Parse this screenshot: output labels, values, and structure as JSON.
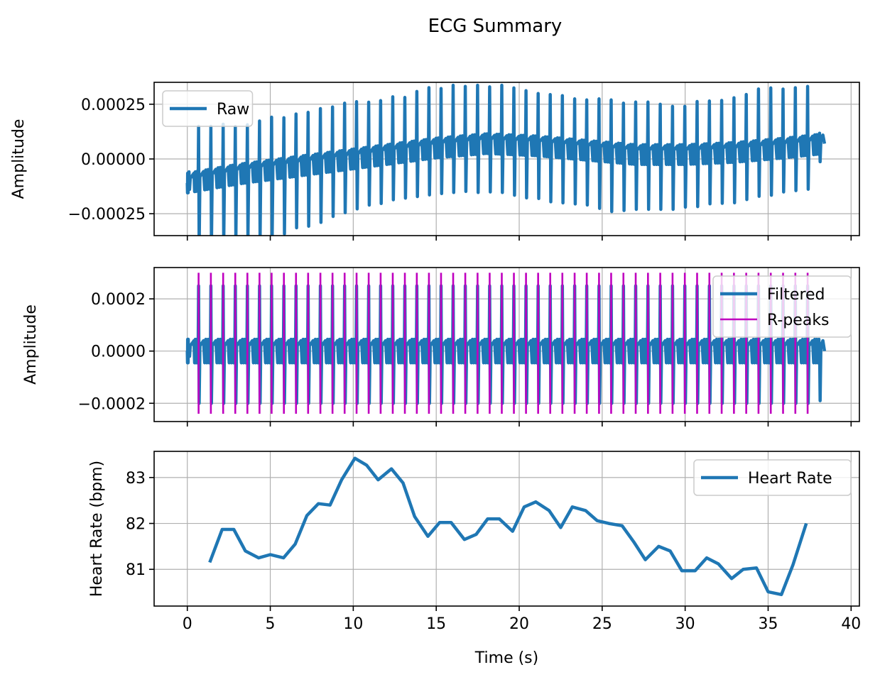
{
  "figure": {
    "title": "ECG Summary",
    "colors": {
      "series": "#1f77b4",
      "peaks": "#bf00bf",
      "grid": "#b0b0b0"
    }
  },
  "chart_data": [
    {
      "type": "line",
      "panel": "raw",
      "xlabel": "",
      "ylabel": "Amplitude",
      "xlim": [
        -2,
        40.5
      ],
      "ylim": [
        -0.00035,
        0.00035
      ],
      "xticks": [
        0,
        5,
        10,
        15,
        20,
        25,
        30,
        35,
        40
      ],
      "yticks": [
        -0.00025,
        0,
        0.00025
      ],
      "ytick_labels": [
        "−0.00025",
        "0.00000",
        "0.00025"
      ],
      "show_xtick_labels": false,
      "grid": true,
      "legend": {
        "placement": "top-left",
        "entries": [
          {
            "label": "Raw",
            "kind": "line"
          }
        ]
      },
      "signal": {
        "t_start": 0.0,
        "t_end": 38.4,
        "beat_times": [
          0.1,
          0.68,
          1.42,
          2.16,
          2.89,
          3.62,
          4.35,
          5.08,
          5.82,
          6.55,
          7.28,
          8.02,
          8.75,
          9.48,
          10.2,
          10.93,
          11.65,
          12.38,
          13.11,
          13.83,
          14.56,
          15.29,
          16.02,
          16.75,
          17.49,
          18.22,
          18.95,
          19.68,
          20.41,
          21.14,
          21.87,
          22.6,
          23.34,
          24.07,
          24.81,
          25.54,
          26.28,
          27.02,
          27.76,
          28.5,
          29.24,
          29.98,
          30.72,
          31.46,
          32.2,
          32.94,
          33.68,
          34.42,
          35.16,
          35.9,
          36.64,
          37.38,
          38.1
        ],
        "r_amplitude": [
          5e-05,
          0.00025,
          0.00024,
          0.00024,
          0.00022,
          0.00022,
          0.00023,
          0.00024,
          0.00023,
          0.00024,
          0.00024,
          0.00025,
          0.00025,
          0.00026,
          0.00026,
          0.00025,
          0.00025,
          0.00026,
          0.00025,
          0.00027,
          0.00028,
          0.00027,
          0.00028,
          0.00027,
          0.00027,
          0.00026,
          0.00027,
          0.00026,
          0.00025,
          0.00024,
          0.00024,
          0.00024,
          0.00023,
          0.00023,
          0.00024,
          0.00024,
          0.00023,
          0.00024,
          0.00024,
          0.00023,
          0.00022,
          0.00022,
          0.00024,
          0.00024,
          0.00024,
          0.00025,
          0.00026,
          0.00028,
          0.00028,
          0.00027,
          0.00027,
          0.00027,
          5e-05
        ],
        "s_amplitude": [
          -3e-05,
          -0.00031,
          -0.00031,
          -0.00031,
          -0.0003,
          -0.0003,
          -0.00031,
          -0.00031,
          -0.0003,
          -0.00028,
          -0.00028,
          -0.00027,
          -0.00025,
          -0.00024,
          -0.00023,
          -0.00022,
          -0.00022,
          -0.00021,
          -0.00021,
          -0.00021,
          -0.00021,
          -0.00021,
          -0.00021,
          -0.00021,
          -0.00022,
          -0.00022,
          -0.00022,
          -0.00023,
          -0.00024,
          -0.00024,
          -0.00025,
          -0.00025,
          -0.00025,
          -0.00025,
          -0.00026,
          -0.00027,
          -0.00026,
          -0.00025,
          -0.00025,
          -0.00025,
          -0.00025,
          -0.00024,
          -0.00024,
          -0.00023,
          -0.00023,
          -0.00023,
          -0.00022,
          -0.00021,
          -0.00021,
          -0.0002,
          -0.0002,
          -0.0002,
          -8e-05
        ],
        "baseline": {
          "t": [
            0,
            3,
            6,
            9,
            12,
            15,
            18,
            21,
            24,
            27,
            30,
            33,
            36,
            38.4
          ],
          "v": [
            -0.00011,
            -7e-05,
            -4e-05,
            -1e-05,
            2e-05,
            5e-05,
            7e-05,
            6e-05,
            4e-05,
            2e-05,
            2e-05,
            3e-05,
            5e-05,
            7e-05
          ]
        }
      }
    },
    {
      "type": "line",
      "panel": "filtered",
      "xlabel": "",
      "ylabel": "Amplitude",
      "xlim": [
        -2,
        40.5
      ],
      "ylim": [
        -0.00027,
        0.00032
      ],
      "xticks": [
        0,
        5,
        10,
        15,
        20,
        25,
        30,
        35,
        40
      ],
      "yticks": [
        -0.0002,
        0,
        0.0002
      ],
      "ytick_labels": [
        "−0.0002",
        "0.0000",
        "0.0002"
      ],
      "show_xtick_labels": false,
      "grid": true,
      "legend": {
        "placement": "top-right",
        "entries": [
          {
            "label": "Filtered",
            "kind": "line"
          },
          {
            "label": "R-peaks",
            "kind": "vline"
          }
        ]
      },
      "signal": {
        "t_start": 0.0,
        "t_end": 38.4,
        "beat_times": [
          0.1,
          0.68,
          1.42,
          2.16,
          2.89,
          3.62,
          4.35,
          5.08,
          5.82,
          6.55,
          7.28,
          8.02,
          8.75,
          9.48,
          10.2,
          10.93,
          11.65,
          12.38,
          13.11,
          13.83,
          14.56,
          15.29,
          16.02,
          16.75,
          17.49,
          18.22,
          18.95,
          19.68,
          20.41,
          21.14,
          21.87,
          22.6,
          23.34,
          24.07,
          24.81,
          25.54,
          26.28,
          27.02,
          27.76,
          28.5,
          29.24,
          29.98,
          30.72,
          31.46,
          32.2,
          32.94,
          33.68,
          34.42,
          35.16,
          35.9,
          36.64,
          37.38,
          38.1
        ],
        "r_amplitude": [
          2e-05,
          0.00025,
          0.00025,
          0.00025,
          0.00025,
          0.00025,
          0.00025,
          0.00025,
          0.00025,
          0.00025,
          0.00025,
          0.00025,
          0.00025,
          0.00025,
          0.00025,
          0.00025,
          0.00025,
          0.00025,
          0.00025,
          0.00025,
          0.00025,
          0.00025,
          0.00025,
          0.00025,
          0.00025,
          0.00025,
          0.00025,
          0.00025,
          0.00025,
          0.00025,
          0.00025,
          0.00025,
          0.00025,
          0.00025,
          0.00025,
          0.00025,
          0.00025,
          0.00025,
          0.00025,
          0.00025,
          0.00025,
          0.00025,
          0.00025,
          0.00025,
          0.00025,
          0.00025,
          0.00025,
          0.00025,
          0.00025,
          0.00025,
          0.00025,
          0.00025,
          2e-05
        ],
        "s_amplitude": [
          -2e-05,
          -0.0002,
          -0.0002,
          -0.0002,
          -0.0002,
          -0.0002,
          -0.0002,
          -0.0002,
          -0.0002,
          -0.0002,
          -0.0002,
          -0.0002,
          -0.0002,
          -0.0002,
          -0.0002,
          -0.0002,
          -0.0002,
          -0.0002,
          -0.0002,
          -0.0002,
          -0.0002,
          -0.0002,
          -0.0002,
          -0.0002,
          -0.0002,
          -0.0002,
          -0.0002,
          -0.0002,
          -0.0002,
          -0.0002,
          -0.0002,
          -0.0002,
          -0.0002,
          -0.0002,
          -0.0002,
          -0.0002,
          -0.0002,
          -0.0002,
          -0.0002,
          -0.0002,
          -0.0002,
          -0.0002,
          -0.0002,
          -0.0002,
          -0.0002,
          -0.0002,
          -0.0002,
          -0.0002,
          -0.0002,
          -0.0002,
          -0.0002,
          -0.0002,
          -0.00019
        ],
        "baseline": {
          "t": [
            0,
            38.4
          ],
          "v": [
            0,
            0
          ]
        }
      },
      "r_peaks": {
        "times": [
          0.68,
          1.42,
          2.16,
          2.89,
          3.62,
          4.35,
          5.08,
          5.82,
          6.55,
          7.28,
          8.02,
          8.75,
          9.48,
          10.2,
          10.93,
          11.65,
          12.38,
          13.11,
          13.83,
          14.56,
          15.29,
          16.02,
          16.75,
          17.49,
          18.22,
          18.95,
          19.68,
          20.41,
          21.14,
          21.87,
          22.6,
          23.34,
          24.07,
          24.81,
          25.54,
          26.28,
          27.02,
          27.76,
          28.5,
          29.24,
          29.98,
          30.72,
          31.46,
          32.2,
          32.94,
          33.68,
          34.42,
          35.16,
          35.9,
          36.64,
          37.38
        ],
        "ymin": -0.00024,
        "ymax": 0.0003
      }
    },
    {
      "type": "line",
      "panel": "heart-rate",
      "xlabel": "Time (s)",
      "ylabel": "Heart Rate (bpm)",
      "xlim": [
        -2,
        40.5
      ],
      "ylim": [
        80.2,
        83.57
      ],
      "xticks": [
        0,
        5,
        10,
        15,
        20,
        25,
        30,
        35,
        40
      ],
      "xtick_labels": [
        "0",
        "5",
        "10",
        "15",
        "20",
        "25",
        "30",
        "35",
        "40"
      ],
      "yticks": [
        81,
        82,
        83
      ],
      "ytick_labels": [
        "81",
        "82",
        "83"
      ],
      "show_xtick_labels": true,
      "grid": true,
      "legend": {
        "placement": "top-right",
        "entries": [
          {
            "label": "Heart Rate",
            "kind": "line"
          }
        ]
      },
      "series": [
        {
          "name": "Heart Rate",
          "x": [
            1.35,
            2.1,
            2.8,
            3.5,
            4.3,
            5.0,
            5.8,
            6.5,
            7.2,
            7.9,
            8.6,
            9.3,
            10.1,
            10.8,
            11.5,
            12.3,
            13.0,
            13.7,
            14.5,
            15.2,
            15.9,
            16.7,
            17.4,
            18.1,
            18.8,
            19.6,
            20.3,
            21.0,
            21.8,
            22.5,
            23.2,
            24.0,
            24.7,
            25.4,
            26.2,
            26.9,
            27.6,
            28.4,
            29.1,
            29.8,
            30.6,
            31.3,
            32.0,
            32.8,
            33.5,
            34.3,
            35.0,
            35.8,
            36.5,
            37.3
          ],
          "y": [
            81.15,
            81.87,
            81.87,
            81.4,
            81.25,
            81.32,
            81.25,
            81.55,
            82.17,
            82.43,
            82.4,
            82.95,
            83.42,
            83.27,
            82.95,
            83.19,
            82.88,
            82.15,
            81.72,
            82.02,
            82.02,
            81.65,
            81.76,
            82.1,
            82.1,
            81.83,
            82.36,
            82.47,
            82.28,
            81.91,
            82.36,
            82.28,
            82.06,
            82.0,
            81.95,
            81.6,
            81.21,
            81.5,
            81.4,
            80.97,
            80.97,
            81.25,
            81.12,
            80.8,
            81.0,
            81.03,
            80.51,
            80.45,
            81.1,
            82.0
          ]
        }
      ]
    }
  ]
}
